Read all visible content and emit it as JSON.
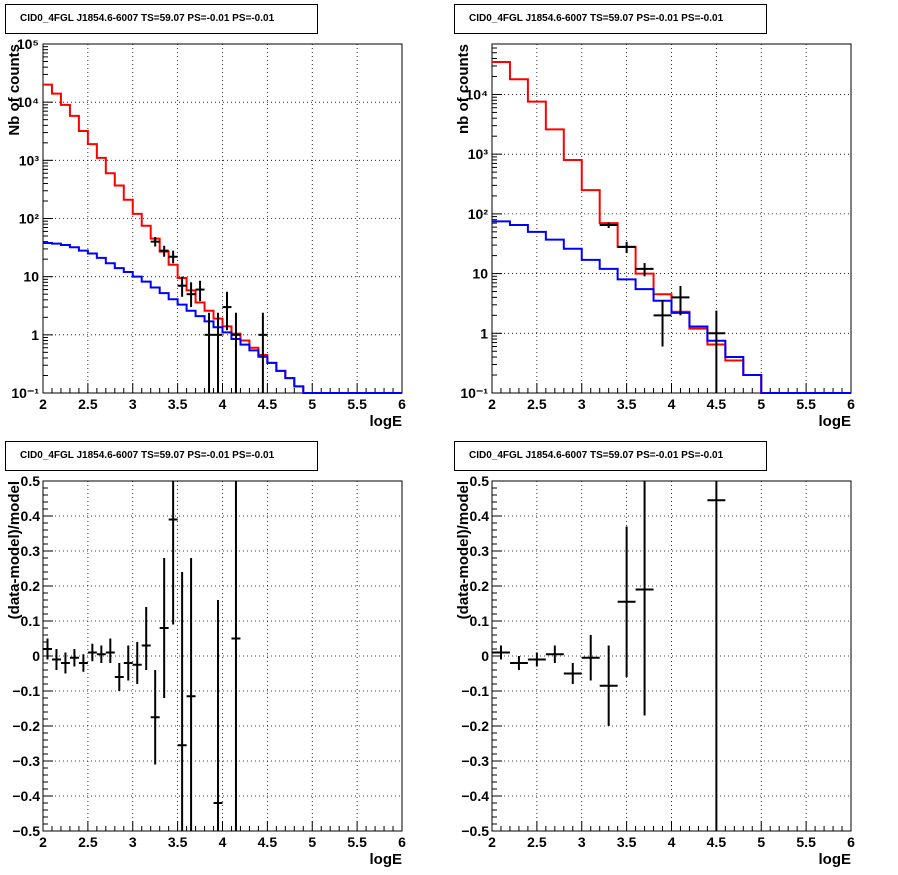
{
  "chart_data": [
    {
      "type": "step-histogram",
      "title": "CID0_4FGL J1854.6-6007 TS=59.07 PS=-0.01 PS=-0.01",
      "xlabel": "logE",
      "ylabel": "Nb of counts",
      "xlim": [
        2,
        6
      ],
      "ylim": [
        0.1,
        100000
      ],
      "log_y": true,
      "grid": true,
      "x_ticks": [
        "2",
        "2.5",
        "3",
        "3.5",
        "4",
        "4.5",
        "5",
        "5.5",
        "6"
      ],
      "y_ticks": [
        "10⁻¹",
        "1",
        "10",
        "10²",
        "10³",
        "10⁴",
        "10⁵"
      ],
      "bin_edges": [
        2.0,
        2.1,
        2.2,
        2.3,
        2.4,
        2.5,
        2.6,
        2.7,
        2.8,
        2.9,
        3.0,
        3.1,
        3.2,
        3.3,
        3.4,
        3.5,
        3.6,
        3.7,
        3.8,
        3.9,
        4.0,
        4.1,
        4.2,
        4.3,
        4.4,
        4.5,
        4.6,
        4.7,
        4.8,
        4.9,
        5.0,
        5.1,
        5.2,
        5.3,
        5.4,
        5.5,
        5.6,
        5.7,
        5.8,
        5.9,
        6.0
      ],
      "series": [
        {
          "color": "#ff0000",
          "values": [
            20000,
            14000,
            9000,
            5800,
            3200,
            1900,
            1100,
            600,
            370,
            210,
            120,
            75,
            45,
            27,
            16,
            9.5,
            5.8,
            3.6,
            2.6,
            1.9,
            1.4,
            1.05,
            0.8,
            0.6,
            0.45,
            0.33,
            0.24,
            0.18,
            0.13,
            0.1,
            0.1,
            0.1,
            0.1,
            0.1,
            0.1,
            0.1,
            0.1,
            0.1,
            0.1,
            0.1
          ]
        },
        {
          "color": "#0000ff",
          "values": [
            38,
            37,
            35,
            32,
            28,
            25,
            21,
            17,
            14,
            12,
            10,
            8.2,
            6.5,
            5.2,
            4.1,
            3.3,
            2.6,
            2.1,
            1.7,
            1.35,
            1.1,
            0.85,
            0.68,
            0.54,
            0.42,
            0.33,
            0.24,
            0.18,
            0.13,
            0.1,
            0.1,
            0.1,
            0.1,
            0.1,
            0.1,
            0.1,
            0.1,
            0.1,
            0.1,
            0.1
          ]
        }
      ],
      "data_points": {
        "color": "#000000",
        "x": [
          3.25,
          3.35,
          3.45,
          3.55,
          3.65,
          3.75,
          3.85,
          3.95,
          4.05,
          4.15,
          4.45
        ],
        "y": [
          40,
          28,
          22,
          7,
          5,
          6,
          1,
          1,
          3,
          1,
          1
        ],
        "y_low": [
          33,
          22,
          17,
          4.5,
          3,
          3.8,
          0.01,
          0.01,
          1.2,
          0.01,
          0.01
        ],
        "y_high": [
          48,
          34,
          28,
          10,
          8,
          8.5,
          2.4,
          2.4,
          5.5,
          2.4,
          2.4
        ]
      }
    },
    {
      "type": "step-histogram",
      "title": "CID0_4FGL J1854.6-6007 TS=59.07 PS=-0.01 PS=-0.01",
      "xlabel": "logE",
      "ylabel": "nb of counts",
      "xlim": [
        2,
        6
      ],
      "ylim": [
        0.1,
        70000
      ],
      "log_y": true,
      "grid": true,
      "x_ticks": [
        "2",
        "2.5",
        "3",
        "3.5",
        "4",
        "4.5",
        "5",
        "5.5",
        "6"
      ],
      "y_ticks": [
        "10⁻¹",
        "1",
        "10",
        "10²",
        "10³",
        "10⁴"
      ],
      "bin_edges": [
        2.0,
        2.2,
        2.4,
        2.6,
        2.8,
        3.0,
        3.2,
        3.4,
        3.6,
        3.8,
        4.0,
        4.2,
        4.4,
        4.6,
        4.8,
        5.0,
        5.2,
        5.4,
        5.6,
        5.8,
        6.0
      ],
      "series": [
        {
          "color": "#ff0000",
          "values": [
            35000,
            18000,
            7600,
            2600,
            800,
            250,
            70,
            28,
            10,
            4.5,
            2.3,
            1.2,
            0.65,
            0.35,
            0.2,
            0.1,
            0.1,
            0.1,
            0.1,
            0.1
          ]
        },
        {
          "color": "#0000ff",
          "values": [
            75,
            65,
            50,
            37,
            26,
            17,
            12,
            8,
            5.5,
            3.5,
            2.2,
            1.3,
            0.75,
            0.4,
            0.2,
            0.1,
            0.1,
            0.1,
            0.1,
            0.1
          ]
        }
      ],
      "data_points": {
        "color": "#000000",
        "x": [
          3.3,
          3.5,
          3.7,
          3.9,
          4.1,
          4.5
        ],
        "y": [
          65,
          28,
          12,
          2,
          4,
          1
        ],
        "y_low": [
          58,
          22,
          9,
          0.6,
          2,
          0.01
        ],
        "y_high": [
          72,
          34,
          15,
          3.6,
          6.2,
          2.4
        ]
      }
    },
    {
      "type": "scatter",
      "title": "CID0_4FGL J1854.6-6007 TS=59.07 PS=-0.01 PS=-0.01",
      "xlabel": "logE",
      "ylabel": "(data-model)/model",
      "xlim": [
        2,
        6
      ],
      "ylim": [
        -0.5,
        0.5
      ],
      "grid": true,
      "x_ticks": [
        "2",
        "2.5",
        "3",
        "3.5",
        "4",
        "4.5",
        "5",
        "5.5",
        "6"
      ],
      "y_ticks": [
        "−0.5",
        "−0.4",
        "−0.3",
        "−0.2",
        "−0.1",
        "0",
        "0.1",
        "0.2",
        "0.3",
        "0.4",
        "0.5"
      ],
      "points": {
        "x": [
          2.05,
          2.15,
          2.25,
          2.35,
          2.45,
          2.55,
          2.65,
          2.75,
          2.85,
          2.95,
          3.05,
          3.15,
          3.25,
          3.35,
          3.45,
          3.55,
          3.65,
          3.95,
          4.15
        ],
        "y": [
          0.02,
          -0.01,
          -0.02,
          -0.005,
          -0.02,
          0.01,
          0.005,
          0.01,
          -0.06,
          -0.02,
          -0.025,
          0.03,
          -0.175,
          0.08,
          0.39,
          -0.255,
          -0.115,
          -0.42,
          0.05
        ],
        "y_low": [
          -0.01,
          -0.04,
          -0.05,
          -0.03,
          -0.045,
          -0.015,
          -0.02,
          -0.02,
          -0.1,
          -0.07,
          -0.08,
          -0.04,
          -0.31,
          -0.12,
          0.09,
          -0.75,
          -0.65,
          -1.0,
          -0.6
        ],
        "y_high": [
          0.05,
          0.02,
          0.01,
          0.02,
          0.005,
          0.035,
          0.03,
          0.05,
          -0.02,
          0.03,
          0.04,
          0.14,
          -0.04,
          0.28,
          0.7,
          0.24,
          0.28,
          0.16,
          0.7
        ]
      }
    },
    {
      "type": "scatter",
      "title": "CID0_4FGL J1854.6-6007 TS=59.07 PS=-0.01 PS=-0.01",
      "xlabel": "logE",
      "ylabel": "(data-model)/model",
      "xlim": [
        2,
        6
      ],
      "ylim": [
        -0.5,
        0.5
      ],
      "grid": true,
      "x_ticks": [
        "2",
        "2.5",
        "3",
        "3.5",
        "4",
        "4.5",
        "5",
        "5.5",
        "6"
      ],
      "y_ticks": [
        "−0.5",
        "−0.4",
        "−0.3",
        "−0.2",
        "−0.1",
        "0",
        "0.1",
        "0.2",
        "0.3",
        "0.4",
        "0.5"
      ],
      "points": {
        "x": [
          2.1,
          2.3,
          2.5,
          2.7,
          2.9,
          3.1,
          3.3,
          3.5,
          3.7,
          4.5
        ],
        "y": [
          0.01,
          -0.02,
          -0.01,
          0.005,
          -0.05,
          -0.005,
          -0.085,
          0.155,
          0.19,
          0.445
        ],
        "y_low": [
          -0.01,
          -0.04,
          -0.03,
          -0.02,
          -0.08,
          -0.07,
          -0.2,
          -0.06,
          -0.17,
          -0.6
        ],
        "y_high": [
          0.03,
          0.0,
          0.01,
          0.03,
          -0.02,
          0.06,
          0.03,
          0.37,
          0.55,
          0.8
        ]
      }
    }
  ]
}
